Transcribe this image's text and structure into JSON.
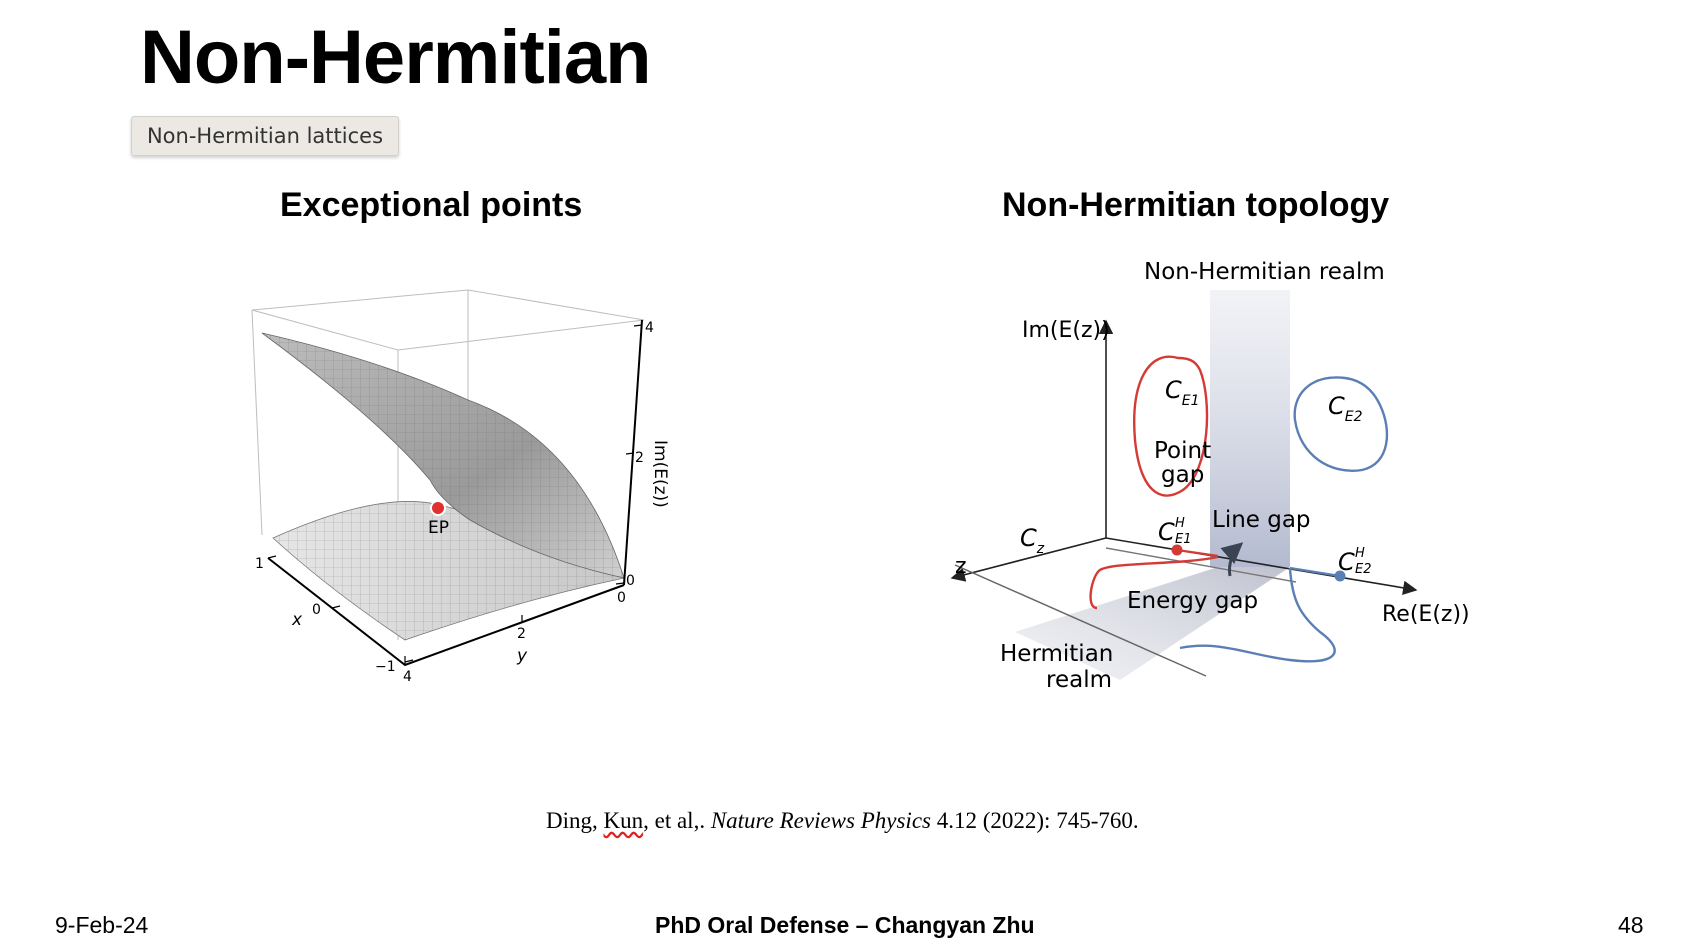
{
  "slide": {
    "title": "Non-Hermitian",
    "tag": "Non-Hermitian lattices"
  },
  "left_panel": {
    "title": "Exceptional points",
    "ep_label": "EP",
    "axis_z_label": "Im(E(z))",
    "axis_x_label": "x",
    "axis_y_label": "y",
    "z_ticks": [
      "4",
      "2",
      "0"
    ],
    "x_ticks": [
      "1",
      "0",
      "−1"
    ],
    "y_ticks": [
      "4",
      "2",
      "0"
    ],
    "colors": {
      "surface": "#d8d8d8",
      "ep_point": "#e03030"
    }
  },
  "right_panel": {
    "title": "Non-Hermitian topology",
    "realm_label": "Non-Hermitian realm",
    "im_axis": "Im(E(z))",
    "re_axis": "Re(E(z))",
    "z_axis": "z",
    "cz": "C",
    "cz_sub": "z",
    "ce1": "C",
    "ce1_sub": "E1",
    "ce2": "C",
    "ce2_sub": "E2",
    "point_gap_1": "Point",
    "point_gap_2": "gap",
    "che1": "C",
    "che1_sup": "H",
    "che1_sub": "E1",
    "che2": "C",
    "che2_sup": "H",
    "che2_sub": "E2",
    "line_gap": "Line gap",
    "energy_gap": "Energy gap",
    "hermitian_1": "Hermitian",
    "hermitian_2": "realm",
    "colors": {
      "red": "#d43a36",
      "blue": "#5b7fb5"
    }
  },
  "citation": {
    "author_prefix": "Ding, ",
    "author_underlined": "Kun",
    "author_suffix": ", et al,. ",
    "journal": "Nature Reviews Physics",
    "details": " 4.12 (2022): 745-760."
  },
  "footer": {
    "date": "9-Feb-24",
    "center": "PhD Oral Defense – Changyan Zhu",
    "page": "48"
  }
}
